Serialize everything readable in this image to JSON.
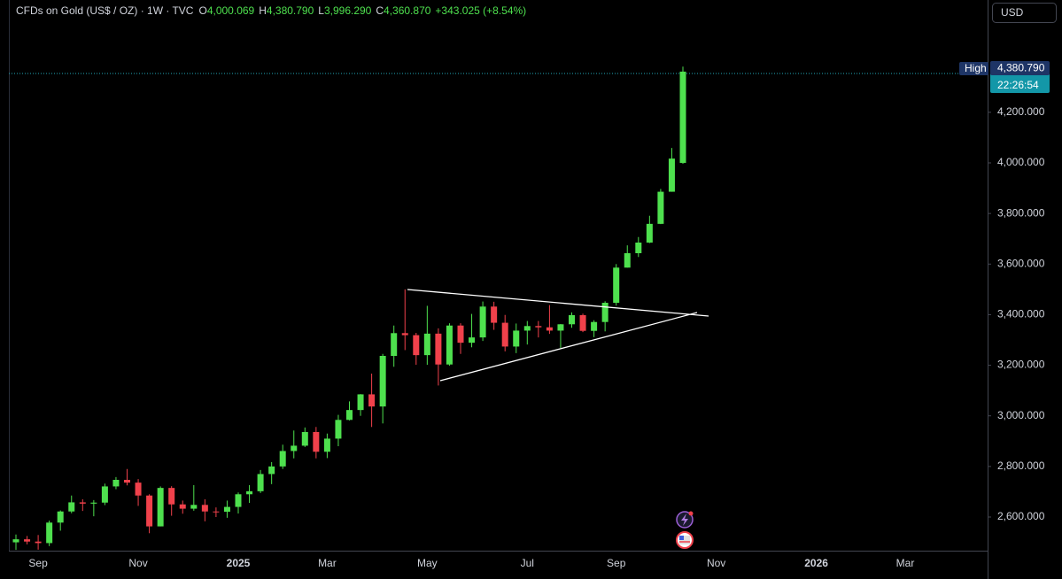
{
  "header": {
    "title": "CFDs on Gold (US$ / OZ) · 1W · TVC",
    "ohlc": [
      {
        "label": "O",
        "value": "4,000.069"
      },
      {
        "label": "H",
        "value": "4,380.790"
      },
      {
        "label": "L",
        "value": "3,996.290"
      },
      {
        "label": "C",
        "value": "4,360.870"
      }
    ],
    "change": "+343.025 (+8.54%)"
  },
  "currency": "USD",
  "price_labels": {
    "high_label": "High",
    "high_value": "4,380.790",
    "countdown": "22:26:54"
  },
  "chart_data": {
    "type": "candlestick",
    "up_color": "#4ee04e",
    "down_color": "#f0414b",
    "categories": [
      null,
      null,
      "Sep",
      null,
      null,
      null,
      null,
      null,
      null,
      null,
      null,
      "Nov",
      null,
      null,
      null,
      null,
      null,
      null,
      null,
      null,
      "2025",
      null,
      null,
      null,
      null,
      null,
      null,
      null,
      "Mar",
      null,
      null,
      null,
      null,
      null,
      null,
      null,
      null,
      "May",
      null,
      null,
      null,
      null,
      null,
      null,
      null,
      null,
      "Jul",
      null,
      null,
      null,
      null,
      null,
      null,
      null,
      "Sep",
      null,
      null,
      null,
      null,
      null,
      null,
      null,
      null,
      "Nov",
      null,
      null,
      null,
      null,
      null,
      null,
      null,
      null,
      "2026",
      null,
      null,
      null,
      null,
      null,
      null,
      null,
      "Mar",
      null,
      null,
      null,
      null,
      null,
      null,
      null
    ],
    "open": [
      2500,
      2512,
      2503,
      2497,
      2578,
      2622,
      2658,
      2653,
      2657,
      2721,
      2747,
      2736,
      2685,
      2563,
      2715,
      2650,
      2633,
      2648,
      2622,
      2621,
      2640,
      2690,
      2702,
      2770,
      2800,
      2861,
      2882,
      2936,
      2858,
      2910,
      2984,
      3023,
      3085,
      3037,
      3237,
      3327,
      3319,
      3240,
      3325,
      3203,
      3357,
      3289,
      3310,
      3432,
      3368,
      3274,
      3337,
      3355,
      3350,
      3337,
      3362,
      3398,
      3336,
      3371,
      3447,
      3586,
      3643,
      3685,
      3759,
      3886,
      4000.069,
      null,
      null,
      null,
      null,
      null,
      null,
      null,
      null,
      null,
      null,
      null,
      null,
      null,
      null,
      null,
      null,
      null,
      null,
      null,
      null,
      null,
      null,
      null,
      null,
      null,
      null,
      null
    ],
    "high": [
      2531,
      2525,
      2529,
      2586,
      2626,
      2685,
      2670,
      2667,
      2732,
      2758,
      2790,
      2750,
      2690,
      2721,
      2722,
      2665,
      2726,
      2670,
      2638,
      2665,
      2697,
      2726,
      2786,
      2817,
      2886,
      2942,
      2954,
      2956,
      2930,
      3004,
      3057,
      3086,
      3167,
      3245,
      3357,
      3500,
      3328,
      3435,
      3346,
      3366,
      3366,
      3403,
      3452,
      3451,
      3399,
      3365,
      3375,
      3375,
      3438,
      3363,
      3409,
      3404,
      3378,
      3453,
      3600,
      3674,
      3707,
      3791,
      3897,
      4059,
      4380.79,
      null,
      null,
      null,
      null,
      null,
      null,
      null,
      null,
      null,
      null,
      null,
      null,
      null,
      null,
      null,
      null,
      null,
      null,
      null,
      null,
      null,
      null,
      null,
      null,
      null,
      null,
      null
    ],
    "low": [
      2470,
      2492,
      2471,
      2485,
      2546,
      2615,
      2624,
      2603,
      2647,
      2710,
      2725,
      2644,
      2536,
      2563,
      2605,
      2613,
      2625,
      2583,
      2600,
      2597,
      2614,
      2656,
      2695,
      2730,
      2790,
      2832,
      2877,
      2832,
      2833,
      2880,
      2982,
      3000,
      2956,
      2970,
      3194,
      3260,
      3202,
      3202,
      3120,
      3198,
      3245,
      3271,
      3296,
      3340,
      3255,
      3248,
      3282,
      3310,
      3324,
      3268,
      3348,
      3331,
      3311,
      3334,
      3436,
      3586,
      3628,
      3683,
      3758,
      3886,
      3996.29,
      null,
      null,
      null,
      null,
      null,
      null,
      null,
      null,
      null,
      null,
      null,
      null,
      null,
      null,
      null,
      null,
      null,
      null,
      null,
      null,
      null,
      null,
      null,
      null,
      null,
      null,
      null
    ],
    "close": [
      2512,
      2503,
      2497,
      2578,
      2622,
      2658,
      2653,
      2657,
      2721,
      2747,
      2736,
      2685,
      2563,
      2715,
      2650,
      2633,
      2648,
      2622,
      2621,
      2640,
      2690,
      2702,
      2770,
      2800,
      2861,
      2882,
      2936,
      2858,
      2910,
      2984,
      3023,
      3085,
      3037,
      3237,
      3327,
      3319,
      3240,
      3325,
      3203,
      3357,
      3289,
      3310,
      3432,
      3368,
      3274,
      3337,
      3355,
      3350,
      3337,
      3362,
      3398,
      3336,
      3371,
      3447,
      3586,
      3643,
      3685,
      3759,
      3886,
      4017,
      4360.87,
      null,
      null,
      null,
      null,
      null,
      null,
      null,
      null,
      null,
      null,
      null,
      null,
      null,
      null,
      null,
      null,
      null,
      null,
      null,
      null,
      null,
      null,
      null,
      null,
      null,
      null,
      null
    ],
    "ylim": [
      2467,
      4644
    ],
    "yticks": [
      {
        "value": 2600,
        "label": "2,600.000"
      },
      {
        "value": 2800,
        "label": "2,800.000"
      },
      {
        "value": 3000,
        "label": "3,000.000"
      },
      {
        "value": 3200,
        "label": "3,200.000"
      },
      {
        "value": 3400,
        "label": "3,400.000"
      },
      {
        "value": 3600,
        "label": "3,600.000"
      },
      {
        "value": 3800,
        "label": "3,800.000"
      },
      {
        "value": 4000,
        "label": "4,000.000"
      },
      {
        "value": 4200,
        "label": "4,200.000"
      }
    ]
  }
}
